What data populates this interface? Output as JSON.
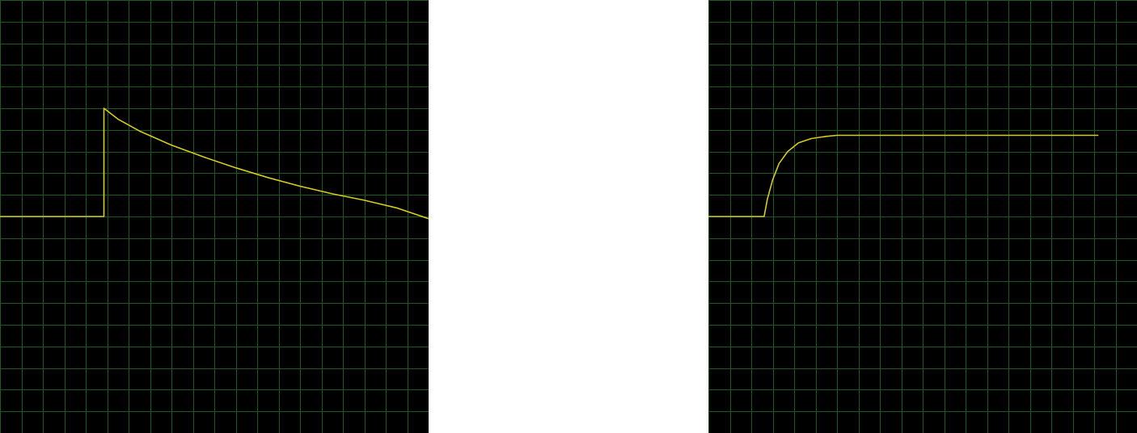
{
  "colors": {
    "background": "#000000",
    "grid": "#1e5a1e",
    "trace": "#d4cc1e",
    "page": "#ffffff"
  },
  "chart_data": [
    {
      "type": "line",
      "title": "",
      "xlabel": "",
      "ylabel": "",
      "grid": true,
      "xlim": [
        0,
        20
      ],
      "ylim": [
        -10,
        10
      ],
      "series": [
        {
          "x": [
            0,
            4.85,
            4.85,
            5.5,
            6.5,
            8,
            9.5,
            11,
            12.5,
            14,
            15.5,
            17,
            18.5,
            20
          ],
          "y": [
            0,
            0,
            5.0,
            4.5,
            3.95,
            3.3,
            2.75,
            2.25,
            1.8,
            1.4,
            1.05,
            0.75,
            0.4,
            -0.1
          ]
        }
      ]
    },
    {
      "type": "line",
      "title": "",
      "xlabel": "",
      "ylabel": "",
      "grid": true,
      "xlim": [
        0,
        20
      ],
      "ylim": [
        -10,
        10
      ],
      "series": [
        {
          "x": [
            0,
            2.6,
            2.75,
            3.0,
            3.3,
            3.7,
            4.2,
            4.8,
            5.5,
            6.0,
            7,
            10,
            14,
            18.2
          ],
          "y": [
            0,
            0,
            0.8,
            1.7,
            2.45,
            3.0,
            3.4,
            3.6,
            3.7,
            3.75,
            3.75,
            3.75,
            3.75,
            3.75
          ]
        }
      ]
    }
  ]
}
